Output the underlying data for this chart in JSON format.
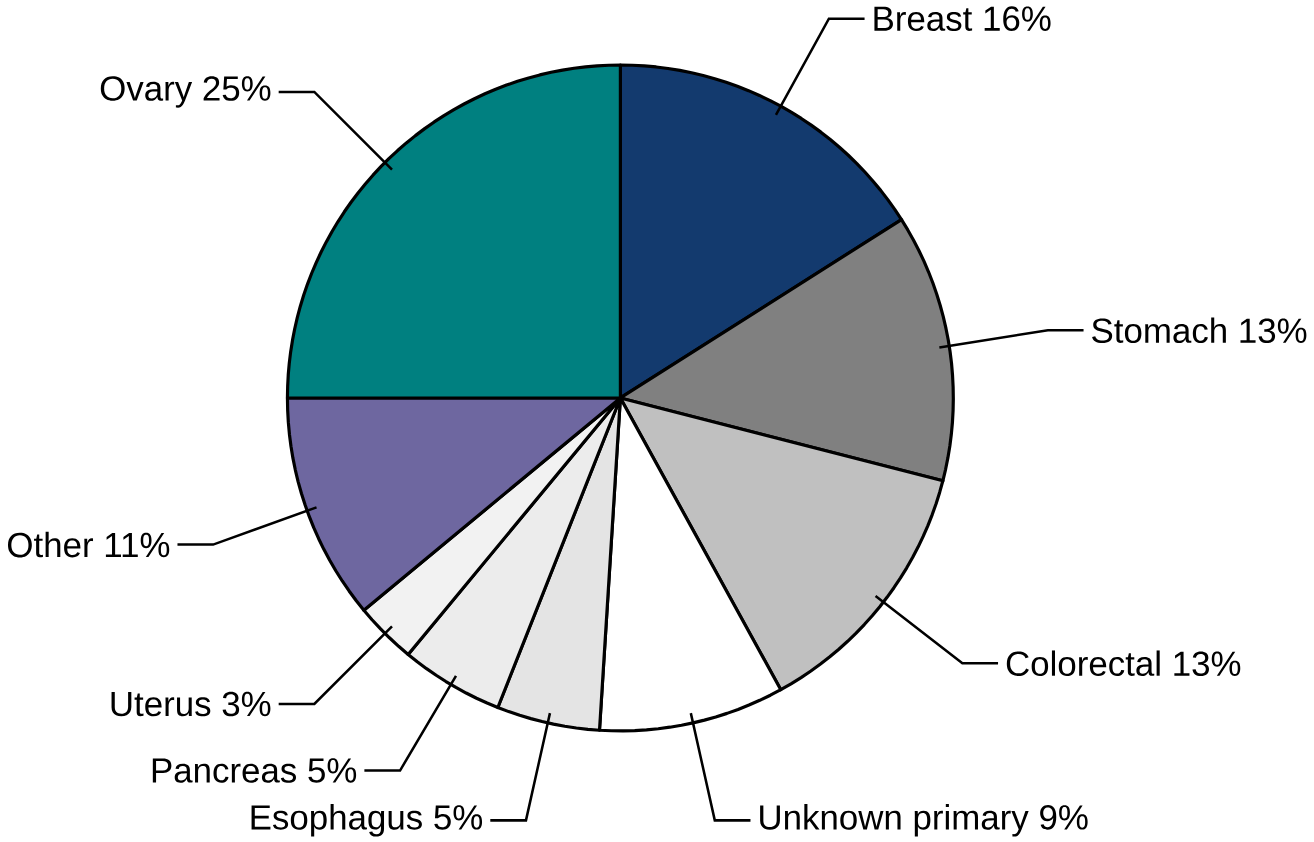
{
  "chart_data": {
    "type": "pie",
    "categories": [
      "Breast",
      "Stomach",
      "Colorectal",
      "Unknown primary",
      "Esophagus",
      "Pancreas",
      "Uterus",
      "Other",
      "Ovary"
    ],
    "values": [
      16,
      13,
      13,
      9,
      5,
      5,
      3,
      11,
      25
    ],
    "value_labels": [
      "16%",
      "13%",
      "13%",
      "9%",
      "5%",
      "5%",
      "3%",
      "11%",
      "25%"
    ],
    "colors": [
      "#133a6e",
      "#808080",
      "#c0c0c0",
      "#ffffff",
      "#e4e4e4",
      "#ececec",
      "#f2f2f2",
      "#6e67a0",
      "#008080"
    ]
  }
}
